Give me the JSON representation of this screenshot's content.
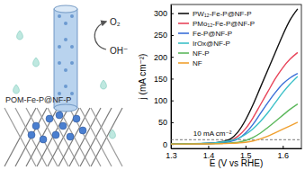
{
  "chart_data": {
    "type": "line",
    "x_label": "E (V vs RHE)",
    "y_label": "j (mA cm⁻²)",
    "x": [
      1.3,
      1.34,
      1.38,
      1.42,
      1.44,
      1.46,
      1.48,
      1.5,
      1.52,
      1.54,
      1.56,
      1.58,
      1.6,
      1.62,
      1.64
    ],
    "series": [
      {
        "name": "PW₁₂-Fe-P@NF-P",
        "color": "#111111",
        "values": [
          0,
          0.5,
          1,
          3,
          6,
          12,
          28,
          55,
          90,
          130,
          170,
          210,
          250,
          285,
          310
        ]
      },
      {
        "name": "PMo₁₂-Fe-P@NF-P",
        "color": "#e8455a",
        "values": [
          0,
          0.5,
          1,
          2,
          4,
          8,
          18,
          35,
          60,
          90,
          120,
          150,
          175,
          195,
          210
        ]
      },
      {
        "name": "Fe-P@NF-P",
        "color": "#3a6fd8",
        "values": [
          0,
          0.3,
          0.8,
          2,
          3,
          6,
          12,
          25,
          45,
          70,
          95,
          118,
          138,
          152,
          162
        ]
      },
      {
        "name": "IrOx@NF-P",
        "color": "#3cc0c8",
        "values": [
          0,
          0.5,
          1.5,
          3,
          5,
          8,
          13,
          22,
          35,
          52,
          72,
          95,
          118,
          138,
          155
        ]
      },
      {
        "name": "NF-P",
        "color": "#5cb85c",
        "values": [
          0,
          0.2,
          0.5,
          1,
          1.5,
          2.5,
          4,
          8,
          15,
          25,
          38,
          52,
          66,
          80,
          92
        ]
      },
      {
        "name": "NF",
        "color": "#f0a030",
        "values": [
          0,
          0.1,
          0.3,
          0.6,
          1,
          1.5,
          2.5,
          4,
          7,
          12,
          18,
          26,
          34,
          42,
          50
        ]
      }
    ],
    "xlim": [
      1.3,
      1.65
    ],
    "xticks": [
      1.3,
      1.4,
      1.5,
      1.6
    ],
    "ylim": [
      -10,
      320
    ],
    "yticks": [
      0,
      50,
      100,
      150,
      200,
      250,
      300
    ],
    "annotations": [
      {
        "text": "10 mA cm⁻²",
        "value": 10
      }
    ],
    "legend": "upper left",
    "grid": false
  },
  "schematic": {
    "labels": [
      "O₂",
      "OH⁻",
      "POM-Fe-P@NF-P"
    ]
  }
}
